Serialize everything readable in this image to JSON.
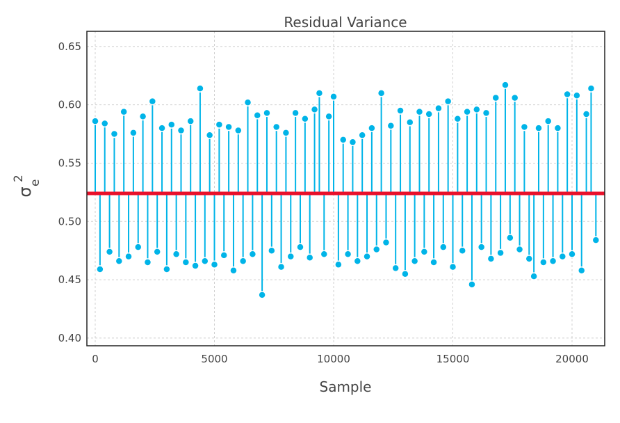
{
  "chart_data": {
    "type": "stem",
    "title": "Residual Variance",
    "xlabel": "Sample",
    "ylabel": {
      "symbol": "σ",
      "sub": "e",
      "sup": "2"
    },
    "x": [
      0,
      200,
      400,
      600,
      800,
      1000,
      1200,
      1400,
      1600,
      1800,
      2000,
      2200,
      2400,
      2600,
      2800,
      3000,
      3200,
      3400,
      3600,
      3800,
      4000,
      4200,
      4400,
      4600,
      4800,
      5000,
      5200,
      5400,
      5600,
      5800,
      6000,
      6200,
      6400,
      6600,
      6800,
      7000,
      7200,
      7400,
      7600,
      7800,
      8000,
      8200,
      8400,
      8600,
      8800,
      9000,
      9200,
      9400,
      9600,
      9800,
      10000,
      10200,
      10400,
      10600,
      10800,
      11000,
      11200,
      11400,
      11600,
      11800,
      12000,
      12200,
      12400,
      12600,
      12800,
      13000,
      13200,
      13400,
      13600,
      13800,
      14000,
      14200,
      14400,
      14600,
      14800,
      15000,
      15200,
      15400,
      15600,
      15800,
      16000,
      16200,
      16400,
      16600,
      16800,
      17000,
      17200,
      17400,
      17600,
      17800,
      18000,
      18200,
      18400,
      18600,
      18800,
      19000,
      19200,
      19400,
      19600,
      19800,
      20000,
      20200,
      20400,
      20600,
      20800,
      21000
    ],
    "series": [
      {
        "color": "#00b4e8",
        "values": [
          0.586,
          0.459,
          0.584,
          0.474,
          0.575,
          0.466,
          0.594,
          0.47,
          0.576,
          0.478,
          0.59,
          0.465,
          0.603,
          0.474,
          0.58,
          0.459,
          0.583,
          0.472,
          0.578,
          0.465,
          0.586,
          0.462,
          0.614,
          0.466,
          0.574,
          0.463,
          0.583,
          0.471,
          0.581,
          0.458,
          0.578,
          0.466,
          0.602,
          0.472,
          0.591,
          0.437,
          0.593,
          0.475,
          0.581,
          0.461,
          0.576,
          0.47,
          0.593,
          0.478,
          0.588,
          0.469,
          0.596,
          0.61,
          0.472,
          0.59,
          0.607,
          0.463,
          0.57,
          0.472,
          0.568,
          0.466,
          0.574,
          0.47,
          0.58,
          0.476,
          0.61,
          0.482,
          0.582,
          0.46,
          0.595,
          0.455,
          0.585,
          0.466,
          0.594,
          0.474,
          0.592,
          0.465,
          0.597,
          0.478,
          0.603,
          0.461,
          0.588,
          0.475,
          0.594,
          0.446,
          0.596,
          0.478,
          0.593,
          0.468,
          0.606,
          0.473,
          0.617,
          0.486,
          0.606,
          0.476,
          0.581,
          0.468,
          0.453,
          0.58,
          0.465,
          0.586,
          0.466,
          0.58,
          0.47,
          0.609,
          0.472,
          0.608,
          0.458,
          0.592,
          0.614,
          0.484
        ]
      }
    ],
    "hline": {
      "value": 0.524,
      "color": "#e8102a"
    },
    "xlim": [
      -350,
      21370
    ],
    "ylim": [
      0.3934,
      0.663
    ],
    "xticks": [
      0,
      5000,
      10000,
      15000,
      20000
    ],
    "yticks": [
      {
        "value": 0.4,
        "label": "0.40"
      },
      {
        "value": 0.45,
        "label": "0.45"
      },
      {
        "value": 0.5,
        "label": "0.50"
      },
      {
        "value": 0.55,
        "label": "0.55"
      },
      {
        "value": 0.6,
        "label": "0.60"
      },
      {
        "value": 0.65,
        "label": "0.65"
      }
    ],
    "grid": true
  }
}
